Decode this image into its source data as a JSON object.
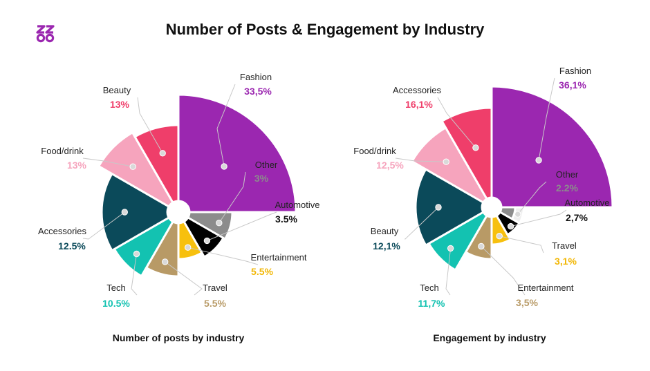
{
  "title": "Number of Posts & Engagement by Industry",
  "logo": {
    "text": "ZOO",
    "icon": "zoo-logo-icon",
    "color": "#9b27b0"
  },
  "chart_data": [
    {
      "type": "pie",
      "variant": "polar-area",
      "subtitle": "Number of posts by industry",
      "slices": [
        {
          "label": "Fashion",
          "value_text": "33,5%",
          "value": 33.5,
          "color": "#9b27b0",
          "value_color": "#9b27b0"
        },
        {
          "label": "Other",
          "value_text": "3%",
          "value": 3,
          "color": "#8c8c8c",
          "value_color": "#8c8c8c"
        },
        {
          "label": "Automotive",
          "value_text": "3.5%",
          "value": 3.5,
          "color": "#000000",
          "value_color": "#111111"
        },
        {
          "label": "Entertainment",
          "value_text": "5.5%",
          "value": 5.5,
          "color": "#f7c00e",
          "value_color": "#f2b705"
        },
        {
          "label": "Travel",
          "value_text": "5.5%",
          "value": 5.5,
          "color": "#b89a66",
          "value_color": "#b89a66"
        },
        {
          "label": "Tech",
          "value_text": "10.5%",
          "value": 10.5,
          "color": "#13c2b1",
          "value_color": "#13c2b1"
        },
        {
          "label": "Accessories",
          "value_text": "12.5%",
          "value": 12.5,
          "color": "#0b4a5a",
          "value_color": "#0b4a5a"
        },
        {
          "label": "Food/drink",
          "value_text": "13%",
          "value": 13,
          "color": "#f6a4bd",
          "value_color": "#f6a4bd"
        },
        {
          "label": "Beauty",
          "value_text": "13%",
          "value": 13,
          "color": "#ef3e6a",
          "value_color": "#ef3e6a"
        }
      ]
    },
    {
      "type": "pie",
      "variant": "polar-area",
      "subtitle": "Engagement by industry",
      "slices": [
        {
          "label": "Fashion",
          "value_text": "36,1%",
          "value": 36.1,
          "color": "#9b27b0",
          "value_color": "#9b27b0"
        },
        {
          "label": "Other",
          "value_text": "2.2%",
          "value": 2.2,
          "color": "#8c8c8c",
          "value_color": "#8c8c8c"
        },
        {
          "label": "Automotive",
          "value_text": "2,7%",
          "value": 2.7,
          "color": "#000000",
          "value_color": "#111111"
        },
        {
          "label": "Travel",
          "value_text": "3,1%",
          "value": 3.1,
          "color": "#f7c00e",
          "value_color": "#f2b705"
        },
        {
          "label": "Entertainment",
          "value_text": "3,5%",
          "value": 3.5,
          "color": "#b89a66",
          "value_color": "#b89a66"
        },
        {
          "label": "Tech",
          "value_text": "11,7%",
          "value": 11.7,
          "color": "#13c2b1",
          "value_color": "#13c2b1"
        },
        {
          "label": "Beauty",
          "value_text": "12,1%",
          "value": 12.1,
          "color": "#0b4a5a",
          "value_color": "#0b4a5a"
        },
        {
          "label": "Food/drink",
          "value_text": "12,5%",
          "value": 12.5,
          "color": "#f6a4bd",
          "value_color": "#f6a4bd"
        },
        {
          "label": "Accessories",
          "value_text": "16,1%",
          "value": 16.1,
          "color": "#ef3e6a",
          "value_color": "#ef3e6a"
        }
      ]
    }
  ]
}
